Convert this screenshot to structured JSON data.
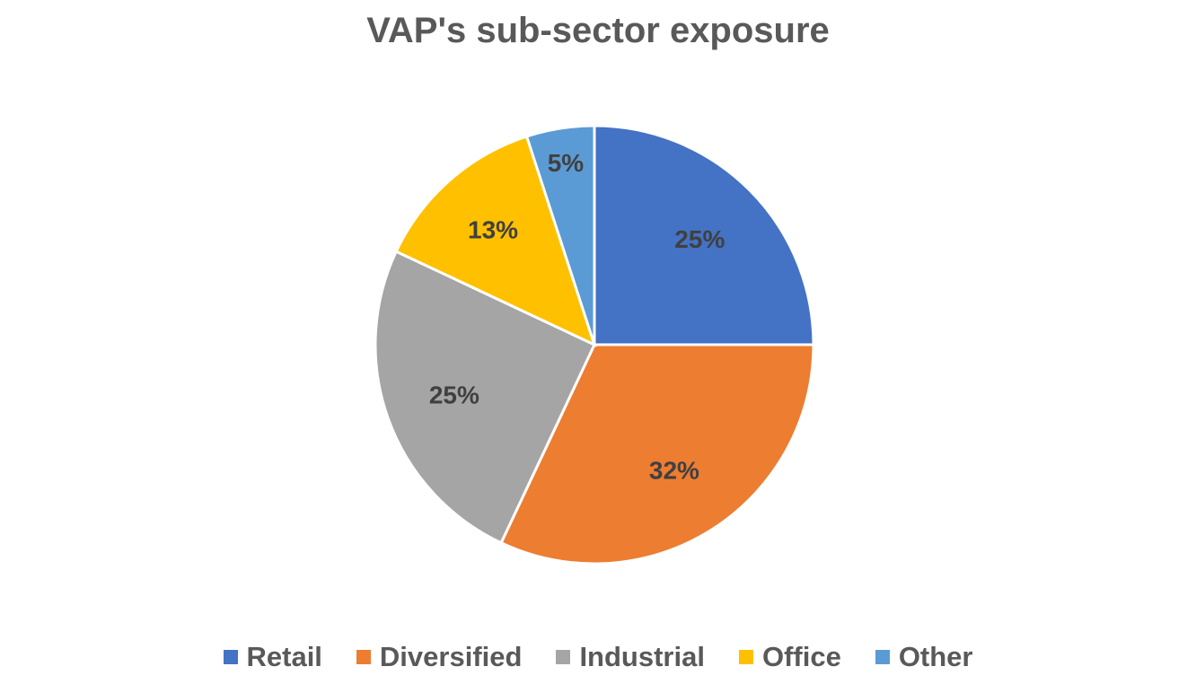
{
  "chart_data": {
    "type": "pie",
    "title": "VAP's sub-sector exposure",
    "categories": [
      "Retail",
      "Diversified",
      "Industrial",
      "Office",
      "Other"
    ],
    "values": [
      25,
      32,
      25,
      13,
      5
    ],
    "data_labels": [
      "25%",
      "32%",
      "25%",
      "13%",
      "5%"
    ],
    "colors": [
      "#4472C4",
      "#ED7D31",
      "#A5A5A5",
      "#FFC000",
      "#5B9BD5"
    ],
    "legend_position": "bottom"
  }
}
